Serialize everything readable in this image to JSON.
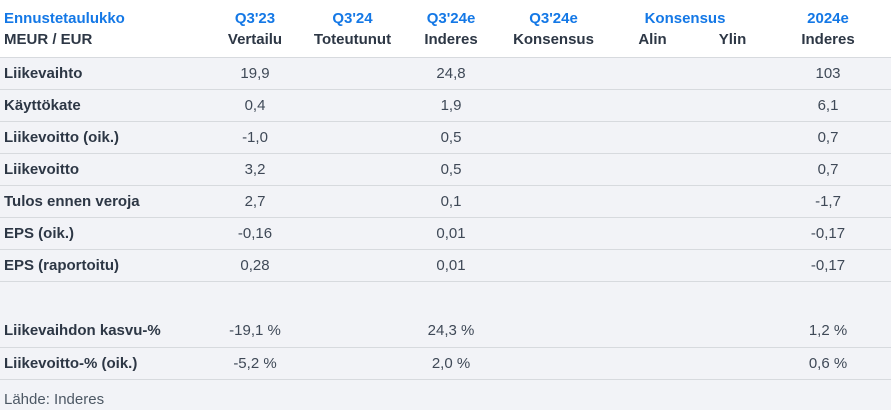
{
  "colors": {
    "accent_blue": "#1478e6",
    "header_bg": "#ffffff",
    "row_bg": "#f2f3f7",
    "border": "#d7dade",
    "label_text": "#2d3745",
    "number_text": "#3f4957",
    "source_text": "#4d5864"
  },
  "table": {
    "title": "Ennustetaulukko",
    "unit_label": "MEUR / EUR",
    "period_headers": [
      "Q3'23",
      "Q3'24",
      "Q3'24e",
      "Q3'24e",
      "Konsensus",
      "2024e"
    ],
    "sub_headers": [
      "Vertailu",
      "Toteutunut",
      "Inderes",
      "Konsensus",
      "Alin",
      "Ylin",
      "Inderes"
    ],
    "rows": [
      {
        "label": "Liikevaihto",
        "values": [
          "19,9",
          "",
          "24,8",
          "",
          "",
          "",
          "103"
        ]
      },
      {
        "label": "Käyttökate",
        "values": [
          "0,4",
          "",
          "1,9",
          "",
          "",
          "",
          "6,1"
        ]
      },
      {
        "label": "Liikevoitto (oik.)",
        "values": [
          "-1,0",
          "",
          "0,5",
          "",
          "",
          "",
          "0,7"
        ]
      },
      {
        "label": "Liikevoitto",
        "values": [
          "3,2",
          "",
          "0,5",
          "",
          "",
          "",
          "0,7"
        ]
      },
      {
        "label": "Tulos ennen veroja",
        "values": [
          "2,7",
          "",
          "0,1",
          "",
          "",
          "",
          "-1,7"
        ]
      },
      {
        "label": "EPS (oik.)",
        "values": [
          "-0,16",
          "",
          "0,01",
          "",
          "",
          "",
          "-0,17"
        ]
      },
      {
        "label": "EPS (raportoitu)",
        "values": [
          "0,28",
          "",
          "0,01",
          "",
          "",
          "",
          "-0,17"
        ]
      },
      {
        "spacer": true
      },
      {
        "label": "Liikevaihdon kasvu-%",
        "values": [
          "-19,1 %",
          "",
          "24,3 %",
          "",
          "",
          "",
          "1,2 %"
        ]
      },
      {
        "label": "Liikevoitto-% (oik.)",
        "values": [
          "-5,2 %",
          "",
          "2,0 %",
          "",
          "",
          "",
          "0,6 %"
        ]
      }
    ],
    "source": "Lähde: Inderes"
  },
  "chart_data": {
    "type": "table",
    "title": "Ennustetaulukko",
    "unit": "MEUR / EUR",
    "columns": [
      "MEUR / EUR",
      "Q3'23 Vertailu",
      "Q3'24 Toteutunut",
      "Q3'24e Inderes",
      "Q3'24e Konsensus",
      "Konsensus Alin",
      "Konsensus Ylin",
      "2024e Inderes"
    ],
    "rows": [
      [
        "Liikevaihto",
        19.9,
        null,
        24.8,
        null,
        null,
        null,
        103
      ],
      [
        "Käyttökate",
        0.4,
        null,
        1.9,
        null,
        null,
        null,
        6.1
      ],
      [
        "Liikevoitto (oik.)",
        -1.0,
        null,
        0.5,
        null,
        null,
        null,
        0.7
      ],
      [
        "Liikevoitto",
        3.2,
        null,
        0.5,
        null,
        null,
        null,
        0.7
      ],
      [
        "Tulos ennen veroja",
        2.7,
        null,
        0.1,
        null,
        null,
        null,
        -1.7
      ],
      [
        "EPS (oik.)",
        -0.16,
        null,
        0.01,
        null,
        null,
        null,
        -0.17
      ],
      [
        "EPS (raportoitu)",
        0.28,
        null,
        0.01,
        null,
        null,
        null,
        -0.17
      ],
      [
        "Liikevaihdon kasvu-%",
        "-19,1 %",
        null,
        "24,3 %",
        null,
        null,
        null,
        "1,2 %"
      ],
      [
        "Liikevoitto-% (oik.)",
        "-5,2 %",
        null,
        "2,0 %",
        null,
        null,
        null,
        "0,6 %"
      ]
    ],
    "source": "Lähde: Inderes",
    "layout": {
      "grid": "horizontal row separators only",
      "value_alignment": "center",
      "label_alignment": "left"
    }
  }
}
